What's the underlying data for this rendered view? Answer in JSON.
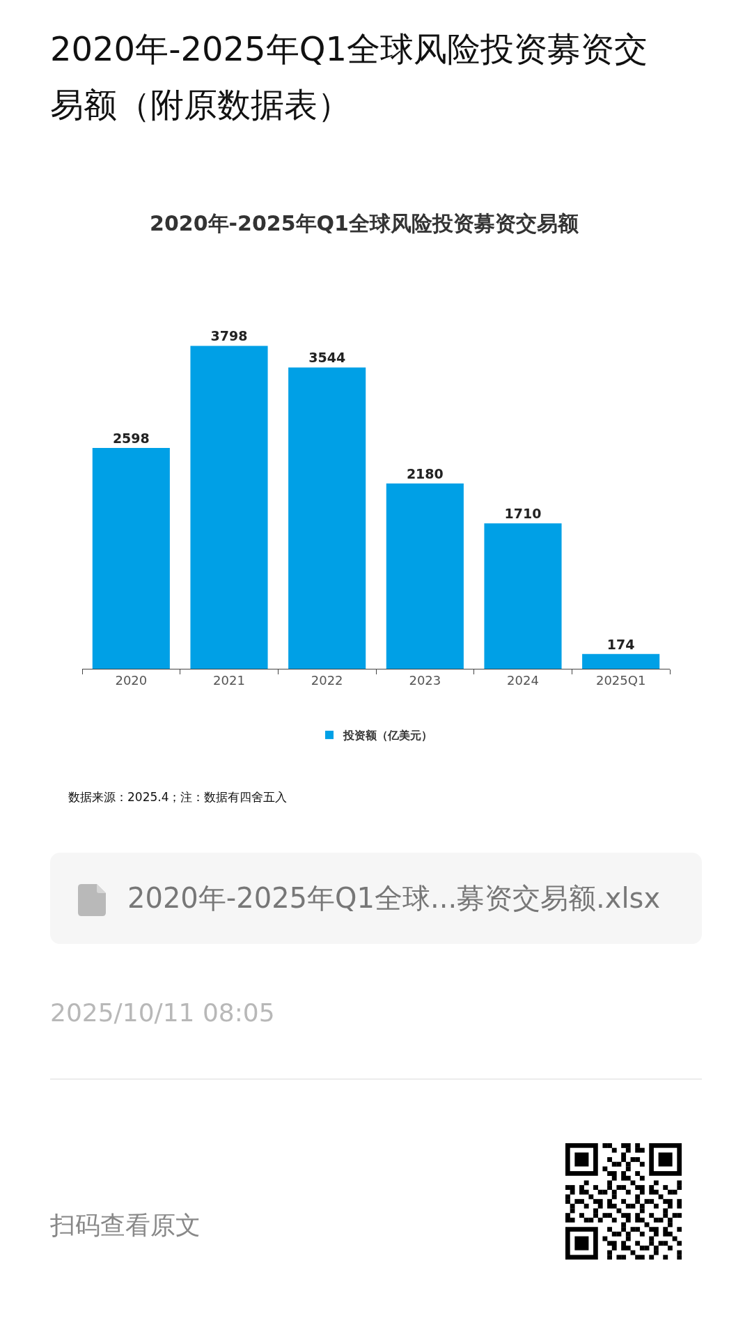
{
  "chart_data": {
    "type": "bar",
    "title": "2020年-2025年Q1全球风险投资募资交易额（附原数据表）",
    "subtitle": "2020年-2025年Q1全球风险投资募资交易额",
    "categories": [
      "2020",
      "2021",
      "2022",
      "2023",
      "2024",
      "2025Q1"
    ],
    "series": [
      {
        "name": "投资额（亿美元）",
        "color": "#00a0e6",
        "values": [
          2598,
          3798,
          3544,
          2180,
          1710,
          174
        ]
      }
    ],
    "data_labels": true,
    "legend": "bottom",
    "grid": false,
    "annotations": [
      "数据来源：2025.4；注：数据有四舍五入",
      "2020年-2025年Q1全球...募资交易额.xlsx",
      "2025/10/11 08:05",
      "扫码查看原文"
    ]
  }
}
